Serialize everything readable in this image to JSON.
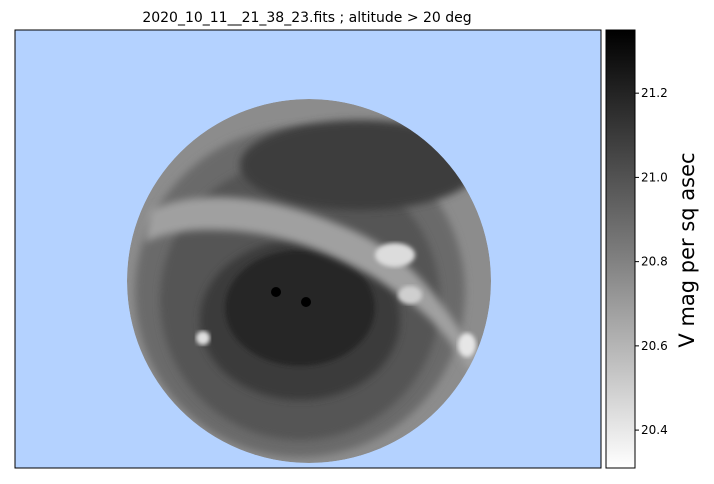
{
  "chart_data": {
    "type": "heatmap",
    "title": "2020_10_11__21_38_23.fits ; altitude > 20 deg",
    "colorbar": {
      "label": "V mag per sq asec",
      "vmin": 20.31,
      "vmax": 21.35,
      "ticks": [
        "20.4",
        "20.6",
        "20.8",
        "21.0",
        "21.2"
      ],
      "tick_values": [
        20.4,
        20.6,
        20.8,
        21.0,
        21.2
      ],
      "colormap": "greys (white = bright 20.3, black = dark 21.35)"
    },
    "background_color": "#b4d2ff",
    "sky_map": {
      "description_levels": [
        {
          "region": "zenith-dark-core",
          "value": 21.35
        },
        {
          "region": "central-dark-area",
          "value": 21.2
        },
        {
          "region": "upper-dark-band",
          "value": 21.15
        },
        {
          "region": "inner-ring",
          "value": 21.05
        },
        {
          "region": "mid-ring",
          "value": 20.95
        },
        {
          "region": "outer-ring",
          "value": 20.85
        },
        {
          "region": "horizon-edge",
          "value": 20.7
        },
        {
          "region": "milky-way-band",
          "value": 20.6
        },
        {
          "region": "bright-spots",
          "value": 20.4
        }
      ]
    }
  }
}
